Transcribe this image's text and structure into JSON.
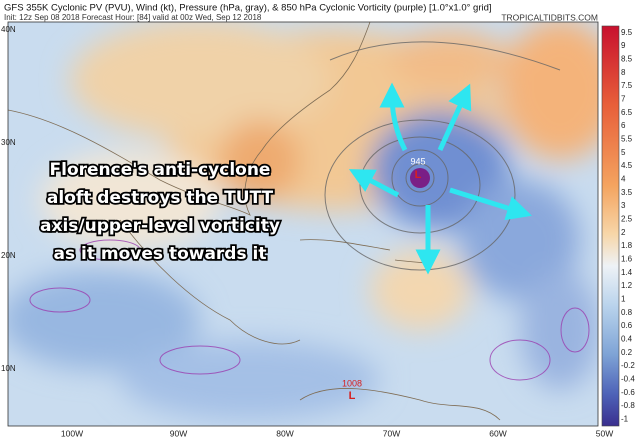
{
  "header": {
    "title": "GFS 355K Cyclonic PV (PVU), Wind (kt), Pressure (hPa, gray), & 850 hPa Cyclonic Vorticity (purple) [1.0°x1.0° grid]",
    "init": "Init: 12z Sep 08 2018   Forecast Hour: [84]   valid at 00z Wed, Sep 12 2018",
    "site": "TROPICALTIDBITS.COM"
  },
  "annotation": [
    "Florence's anti-cyclone",
    "aloft destroys the TUTT",
    "axis/upper-level vorticity",
    "as it moves towards it"
  ],
  "markers": [
    "945",
    "1008"
  ],
  "latitude_labels": [
    "40N",
    "30N",
    "20N",
    "10N"
  ],
  "longitude_labels": [
    "100W",
    "90W",
    "80W",
    "70W",
    "60W",
    "50W"
  ],
  "colorbar_labels": [
    "9.5",
    "9",
    "8.5",
    "8",
    "7.5",
    "7",
    "6.5",
    "6",
    "5.5",
    "5",
    "4.5",
    "4",
    "3.5",
    "3",
    "2.5",
    "2",
    "1.8",
    "1.6",
    "1.4",
    "1.2",
    "1",
    "0.8",
    "0.6",
    "0.4",
    "0.2",
    "-0.2",
    "-0.4",
    "-0.6",
    "-0.8",
    "-1"
  ]
}
